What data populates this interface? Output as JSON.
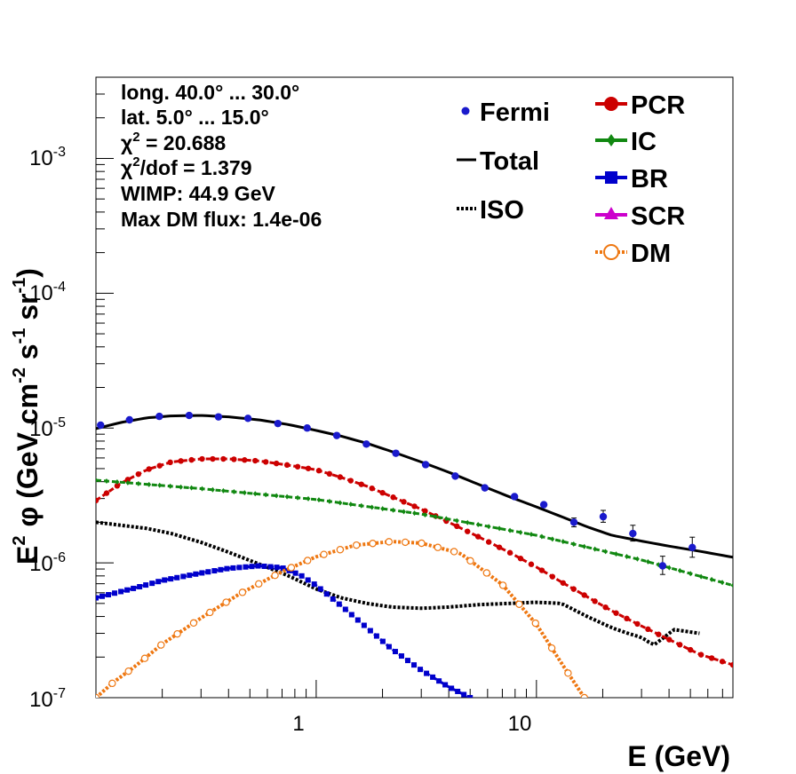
{
  "colors": {
    "fermi": "#1a1acc",
    "total": "#000000",
    "iso": "#000000",
    "pcr": "#cc0000",
    "ic": "#118811",
    "br": "#0000cc",
    "scr": "#cc00cc",
    "dm": "#ee7711"
  },
  "info": {
    "longitude": "long. 40.0° ... 30.0°",
    "latitude": "lat. 5.0° ... 15.0°",
    "chi2_sym": "χ",
    "chi2_sup": "2",
    "chi2_value": " = 20.688",
    "chi2dof_value": "/dof = 1.379",
    "wimp": "WIMP: 44.9 GeV",
    "max_dm_flux": "Max DM flux: 1.4e-06"
  },
  "legend": {
    "fermi": "Fermi",
    "total": "Total",
    "iso": "ISO",
    "pcr": "PCR",
    "ic": "IC",
    "br": "BR",
    "scr": "SCR",
    "dm": "DM"
  },
  "chart_data": {
    "type": "line",
    "x_scale": "log",
    "y_scale": "log",
    "xlim": [
      0.1,
      78
    ],
    "ylim": [
      1e-07,
      0.004
    ],
    "xlabel": "E (GeV)",
    "ylabel": {
      "prefix": "E",
      "prefix_sup": "2",
      "phi": "φ (GeV cm",
      "cm_exp": "-2",
      "s": " s",
      "s_exp": "-1",
      "sr": " sr",
      "sr_exp": "-1",
      "close": ")"
    },
    "x_tick_labels": [
      {
        "value": 1,
        "label": "1"
      },
      {
        "value": 10,
        "label": "10"
      }
    ],
    "y_tick_labels": [
      {
        "value": 1e-07,
        "base": "10",
        "exp": "-7"
      },
      {
        "value": 1e-06,
        "base": "10",
        "exp": "-6"
      },
      {
        "value": 1e-05,
        "base": "10",
        "exp": "-5"
      },
      {
        "value": 0.0001,
        "base": "10",
        "exp": "-4"
      },
      {
        "value": 0.001,
        "base": "10",
        "exp": "-3"
      }
    ],
    "fermi_points": [
      {
        "x": 0.105,
        "y": 1.05e-05
      },
      {
        "x": 0.142,
        "y": 1.15e-05
      },
      {
        "x": 0.194,
        "y": 1.22e-05
      },
      {
        "x": 0.265,
        "y": 1.24e-05
      },
      {
        "x": 0.36,
        "y": 1.21e-05
      },
      {
        "x": 0.49,
        "y": 1.18e-05
      },
      {
        "x": 0.67,
        "y": 1.08e-05
      },
      {
        "x": 0.91,
        "y": 1e-05
      },
      {
        "x": 1.24,
        "y": 8.8e-06
      },
      {
        "x": 1.69,
        "y": 7.6e-06
      },
      {
        "x": 2.3,
        "y": 6.5e-06
      },
      {
        "x": 3.14,
        "y": 5.35e-06
      },
      {
        "x": 4.28,
        "y": 4.4e-06
      },
      {
        "x": 5.83,
        "y": 3.6e-06
      },
      {
        "x": 7.95,
        "y": 3.1e-06
      },
      {
        "x": 10.8,
        "y": 2.7e-06
      },
      {
        "x": 14.8,
        "y": 2e-06,
        "err": [
          1.85e-06,
          2.15e-06
        ]
      },
      {
        "x": 20.1,
        "y": 2.2e-06,
        "err": [
          2e-06,
          2.45e-06
        ]
      },
      {
        "x": 27.4,
        "y": 1.65e-06,
        "err": [
          1.45e-06,
          1.9e-06
        ]
      },
      {
        "x": 37.4,
        "y": 9.5e-07,
        "err": [
          8.2e-07,
          1.12e-06
        ]
      },
      {
        "x": 51.0,
        "y": 1.3e-06,
        "err": [
          1.1e-06,
          1.55e-06
        ]
      }
    ],
    "series": [
      {
        "name": "Total",
        "key": "total",
        "style": "solid",
        "marker": "none",
        "x": [
          0.1,
          0.13,
          0.17,
          0.22,
          0.3,
          0.4,
          0.55,
          0.75,
          1.0,
          1.3,
          1.7,
          2.2,
          3.0,
          4.0,
          5.5,
          7.5,
          10,
          13,
          17,
          22,
          30,
          40,
          55,
          78
        ],
        "y": [
          9.9e-06,
          1.1e-05,
          1.19e-05,
          1.23e-05,
          1.24e-05,
          1.21e-05,
          1.15e-05,
          1.06e-05,
          9.6e-06,
          8.7e-06,
          7.7e-06,
          6.7e-06,
          5.6e-06,
          4.7e-06,
          3.8e-06,
          3.1e-06,
          2.6e-06,
          2.2e-06,
          1.85e-06,
          1.6e-06,
          1.45e-06,
          1.33e-06,
          1.22e-06,
          1.1e-06
        ]
      },
      {
        "name": "ISO",
        "key": "iso",
        "style": "dotted",
        "marker": "none",
        "x": [
          0.1,
          0.13,
          0.17,
          0.22,
          0.3,
          0.4,
          0.55,
          0.75,
          1.0,
          1.3,
          1.7,
          2.2,
          3.0,
          4.0,
          5.5,
          7.5,
          10,
          13,
          17,
          22,
          26,
          30,
          34,
          38,
          42,
          48,
          55
        ],
        "y": [
          2e-06,
          1.9e-06,
          1.8e-06,
          1.65e-06,
          1.42e-06,
          1.2e-06,
          9.8e-07,
          8e-07,
          6.4e-07,
          5.5e-07,
          5e-07,
          4.7e-07,
          4.6e-07,
          4.7e-07,
          4.9e-07,
          5e-07,
          5.1e-07,
          5e-07,
          4e-07,
          3.3e-07,
          3e-07,
          2.8e-07,
          2.45e-07,
          2.8e-07,
          3.2e-07,
          3.1e-07,
          3e-07
        ]
      },
      {
        "name": "PCR",
        "key": "pcr",
        "style": "dashed",
        "marker": "circle",
        "x": [
          0.1,
          0.13,
          0.17,
          0.22,
          0.3,
          0.4,
          0.55,
          0.75,
          1.0,
          1.3,
          1.7,
          2.2,
          3.0,
          4.0,
          5.5,
          7.5,
          10,
          13,
          17,
          22,
          30,
          40,
          55,
          78
        ],
        "y": [
          2.9e-06,
          3.9e-06,
          4.9e-06,
          5.6e-06,
          5.9e-06,
          5.9e-06,
          5.7e-06,
          5.3e-06,
          4.9e-06,
          4.3e-06,
          3.7e-06,
          3.1e-06,
          2.5e-06,
          2e-06,
          1.55e-06,
          1.2e-06,
          9.3e-07,
          7.2e-07,
          5.6e-07,
          4.4e-07,
          3.4e-07,
          2.7e-07,
          2.1e-07,
          1.75e-07
        ]
      },
      {
        "name": "IC",
        "key": "ic",
        "style": "dashed",
        "marker": "diamond",
        "x": [
          0.1,
          0.3,
          1.0,
          3.0,
          10,
          30,
          78
        ],
        "y": [
          4.1e-06,
          3.55e-06,
          2.95e-06,
          2.3e-06,
          1.6e-06,
          1.05e-06,
          6.8e-07
        ]
      },
      {
        "name": "BR",
        "key": "br",
        "style": "dashed",
        "marker": "square",
        "x": [
          0.1,
          0.15,
          0.2,
          0.3,
          0.4,
          0.55,
          0.7,
          0.85,
          1.0,
          1.3,
          1.7,
          2.2,
          3.0,
          4.0,
          5.0
        ],
        "y": [
          5.5e-07,
          6.5e-07,
          7.4e-07,
          8.4e-07,
          9.1e-07,
          9.5e-07,
          9.2e-07,
          8.1e-07,
          6.8e-07,
          4.8e-07,
          3.3e-07,
          2.3e-07,
          1.6e-07,
          1.2e-07,
          1e-07
        ]
      },
      {
        "name": "SCR",
        "key": "scr",
        "style": "solid",
        "marker": "triangle",
        "x": [],
        "y": []
      },
      {
        "name": "DM",
        "key": "dm",
        "style": "dotted",
        "marker": "open-circle",
        "x": [
          0.1,
          0.12,
          0.15,
          0.2,
          0.3,
          0.45,
          0.7,
          1.0,
          1.5,
          2.2,
          3.0,
          4.5,
          7.0,
          10,
          13,
          16.5
        ],
        "y": [
          1e-07,
          1.3e-07,
          1.7e-07,
          2.5e-07,
          3.9e-07,
          5.9e-07,
          8.6e-07,
          1.11e-06,
          1.35e-06,
          1.44e-06,
          1.4e-06,
          1.18e-06,
          6.9e-07,
          3.5e-07,
          1.8e-07,
          1e-07
        ]
      }
    ]
  }
}
